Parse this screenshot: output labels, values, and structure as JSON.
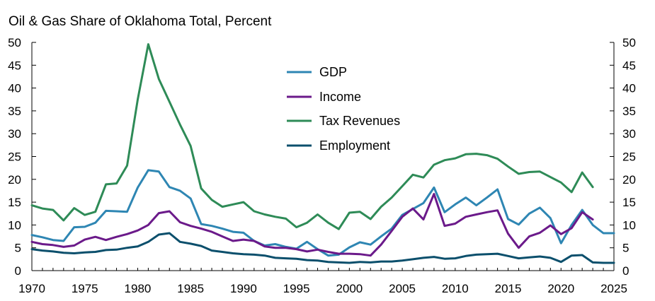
{
  "chart_data": {
    "type": "line",
    "title": "Oil & Gas Share of Oklahoma Total, Percent",
    "xlim": [
      1970,
      2025
    ],
    "ylim": [
      0,
      50
    ],
    "x_ticks": [
      1970,
      1975,
      1980,
      1985,
      1990,
      1995,
      2000,
      2005,
      2010,
      2015,
      2020,
      2025
    ],
    "y_ticks": [
      0,
      5,
      10,
      15,
      20,
      25,
      30,
      35,
      40,
      45,
      50
    ],
    "legend_position": "center-left",
    "series": [
      {
        "name": "GDP",
        "color": "#2e86b3",
        "start_year": 1970,
        "values": [
          7.8,
          7.3,
          6.7,
          6.5,
          9.5,
          9.6,
          10.5,
          13.1,
          13.0,
          12.9,
          18.2,
          22.0,
          21.7,
          18.3,
          17.5,
          15.8,
          10.2,
          9.8,
          9.2,
          8.5,
          8.3,
          6.5,
          5.5,
          5.8,
          5.2,
          4.8,
          6.3,
          4.7,
          3.3,
          3.5,
          5.1,
          6.2,
          5.7,
          7.5,
          9.2,
          12.2,
          13.5,
          14.8,
          18.2,
          12.8,
          14.5,
          16.0,
          14.3,
          16.0,
          17.8,
          11.3,
          10.1,
          12.5,
          13.8,
          11.5,
          6.0,
          10.0,
          13.3,
          10.0,
          8.2,
          8.2
        ]
      },
      {
        "name": "Income",
        "color": "#6b1a8a",
        "start_year": 1970,
        "values": [
          6.3,
          5.8,
          5.6,
          5.2,
          5.5,
          6.8,
          7.4,
          6.7,
          7.4,
          8.0,
          8.8,
          10.0,
          12.6,
          13.0,
          10.6,
          9.8,
          9.2,
          8.5,
          7.5,
          6.5,
          6.8,
          6.5,
          5.3,
          5.0,
          5.0,
          4.7,
          4.2,
          4.6,
          4.1,
          3.7,
          3.7,
          3.6,
          3.3,
          5.7,
          8.7,
          11.8,
          13.6,
          11.2,
          16.8,
          9.8,
          10.3,
          11.8,
          12.3,
          12.8,
          13.2,
          8.1,
          5.0,
          7.5,
          8.3,
          9.9,
          8.0,
          9.3,
          12.8,
          11.2
        ]
      },
      {
        "name": "Tax Revenues",
        "color": "#2e8b57",
        "start_year": 1970,
        "values": [
          14.3,
          13.6,
          13.3,
          11.0,
          13.7,
          12.2,
          12.9,
          18.9,
          19.1,
          23.0,
          37.5,
          49.6,
          42.0,
          37.0,
          32.0,
          27.3,
          18.0,
          15.5,
          14.0,
          14.5,
          15.0,
          13.0,
          12.3,
          11.8,
          11.4,
          9.5,
          10.5,
          12.3,
          10.5,
          9.1,
          12.7,
          12.9,
          11.3,
          14.0,
          16.0,
          18.5,
          21.0,
          20.4,
          23.2,
          24.2,
          24.6,
          25.5,
          25.6,
          25.3,
          24.5,
          22.8,
          21.2,
          21.6,
          21.7,
          20.5,
          19.3,
          17.2,
          21.5,
          18.3
        ]
      },
      {
        "name": "Employment",
        "color": "#0b4f6c",
        "start_year": 1970,
        "values": [
          4.7,
          4.4,
          4.2,
          3.9,
          3.8,
          4.0,
          4.1,
          4.5,
          4.6,
          5.0,
          5.3,
          6.3,
          7.9,
          8.2,
          6.3,
          5.9,
          5.4,
          4.4,
          4.1,
          3.8,
          3.6,
          3.5,
          3.3,
          2.8,
          2.7,
          2.6,
          2.3,
          2.2,
          1.9,
          1.8,
          1.7,
          1.9,
          1.8,
          2.0,
          2.0,
          2.2,
          2.5,
          2.8,
          3.0,
          2.6,
          2.7,
          3.2,
          3.5,
          3.6,
          3.7,
          3.2,
          2.7,
          2.9,
          3.1,
          2.8,
          1.9,
          3.3,
          3.4,
          1.8,
          1.7,
          1.7
        ]
      }
    ]
  }
}
